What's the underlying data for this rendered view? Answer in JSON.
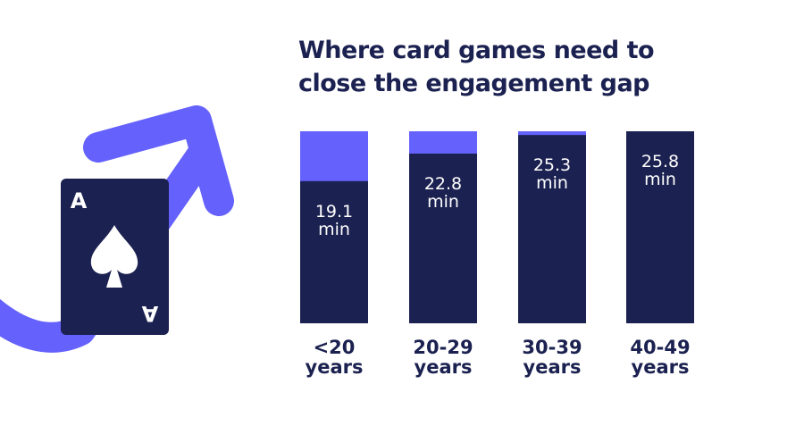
{
  "chart_data": {
    "type": "bar",
    "title": "Where card games need to close the engagement gap",
    "categories": [
      "<20 years",
      "20-29 years",
      "30-39 years",
      "40-49 years"
    ],
    "values": [
      19.1,
      22.8,
      25.3,
      25.8
    ],
    "value_labels": [
      "19.1 min",
      "22.8 min",
      "25.3 min",
      "25.8 min"
    ],
    "color": "#1b2150",
    "gap_color": "#6461fc",
    "ylim": [
      0,
      25.8
    ]
  },
  "card": {
    "rank": "A"
  }
}
